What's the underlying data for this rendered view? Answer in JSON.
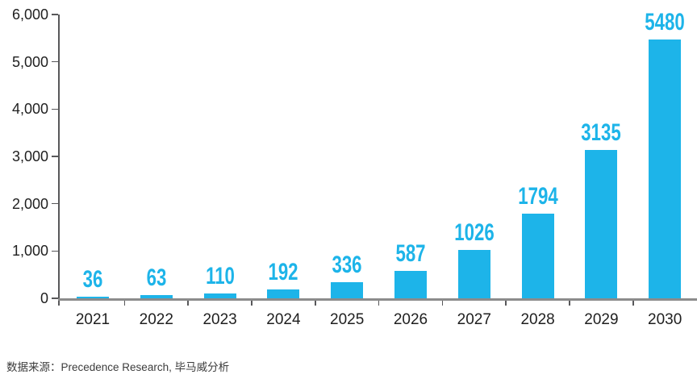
{
  "chart_data": {
    "type": "bar",
    "title": "",
    "categories": [
      "2021",
      "2022",
      "2023",
      "2024",
      "2025",
      "2026",
      "2027",
      "2028",
      "2029",
      "2030"
    ],
    "values": [
      36,
      63,
      110,
      192,
      336,
      587,
      1026,
      1794,
      3135,
      5480
    ],
    "data_labels": [
      "36",
      "63",
      "110",
      "192",
      "336",
      "587",
      "1026",
      "1794",
      "3135",
      "5480"
    ],
    "xlabel": "",
    "ylabel": "",
    "ylim": [
      0,
      6000
    ],
    "y_tick_step": 1000,
    "y_tick_labels": [
      "6,000",
      "5,000",
      "4,000",
      "3,000",
      "2,000",
      "1,000",
      "0"
    ],
    "grid": false,
    "legend": false,
    "bar_color": "#1db4e9",
    "data_label_color": "#1db4e9",
    "axis_text_color": "#1f1f1f",
    "x_axis_line_color": "#8c8c8c",
    "y_axis_line_color": "#58585a"
  },
  "source_note": "数据来源：Precedence Research, 毕马威分析"
}
